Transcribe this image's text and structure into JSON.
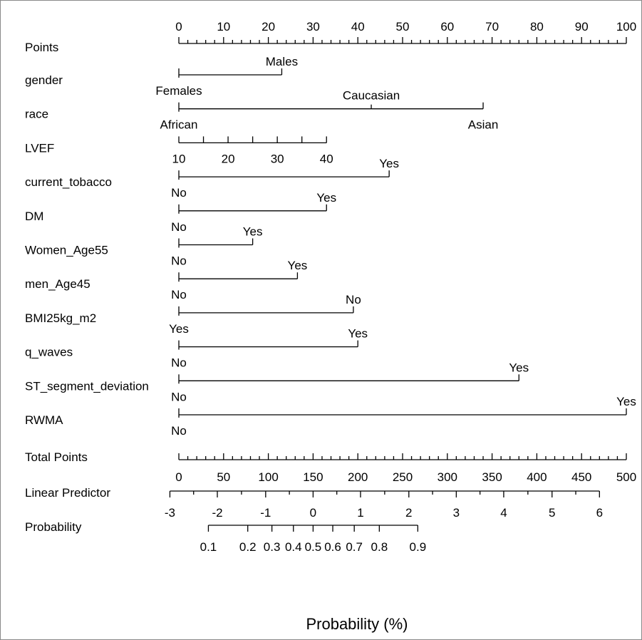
{
  "chart_data": {
    "type": "nomogram",
    "xlabel": "Probability (%)",
    "points_scale": {
      "label": "Points",
      "min": 0,
      "max": 100,
      "major_step": 10,
      "minor_step": 2
    },
    "variables": [
      {
        "name": "gender",
        "levels": [
          {
            "label": "Females",
            "points": 0
          },
          {
            "label": "Males",
            "points": 23
          }
        ]
      },
      {
        "name": "race",
        "levels": [
          {
            "label": "African",
            "points": 0
          },
          {
            "label": "Caucasian",
            "points": 43
          },
          {
            "label": "Asian",
            "points": 68
          }
        ]
      },
      {
        "name": "LVEF",
        "levels": [
          {
            "label": "10",
            "points": 0
          },
          {
            "label": "20",
            "points": 11
          },
          {
            "label": "30",
            "points": 22
          },
          {
            "label": "40",
            "points": 33
          }
        ]
      },
      {
        "name": "current_tobacco",
        "levels": [
          {
            "label": "No",
            "points": 0
          },
          {
            "label": "Yes",
            "points": 47
          }
        ]
      },
      {
        "name": "DM",
        "levels": [
          {
            "label": "No",
            "points": 0
          },
          {
            "label": "Yes",
            "points": 33
          }
        ]
      },
      {
        "name": "Women_Age55",
        "levels": [
          {
            "label": "No",
            "points": 0
          },
          {
            "label": "Yes",
            "points": 16.5
          }
        ]
      },
      {
        "name": "men_Age45",
        "levels": [
          {
            "label": "No",
            "points": 0
          },
          {
            "label": "Yes",
            "points": 26.5
          }
        ]
      },
      {
        "name": "BMI25kg_m2",
        "levels": [
          {
            "label": "Yes",
            "points": 0
          },
          {
            "label": "No",
            "points": 39
          }
        ]
      },
      {
        "name": "q_waves",
        "levels": [
          {
            "label": "No",
            "points": 0
          },
          {
            "label": "Yes",
            "points": 40
          }
        ]
      },
      {
        "name": "ST_segment_deviation",
        "levels": [
          {
            "label": "No",
            "points": 0
          },
          {
            "label": "Yes",
            "points": 76
          }
        ]
      },
      {
        "name": "RWMA",
        "levels": [
          {
            "label": "No",
            "points": 0
          },
          {
            "label": "Yes",
            "points": 100
          }
        ]
      }
    ],
    "total_points_scale": {
      "label": "Total Points",
      "min": 0,
      "max": 500,
      "major_step": 50,
      "minor_step": 10
    },
    "linear_predictor": {
      "label": "Linear Predictor",
      "ticks": [
        {
          "label": "-3",
          "value": -3,
          "total_points": -10
        },
        {
          "label": "-2",
          "value": -2,
          "total_points": 43
        },
        {
          "label": "-1",
          "value": -1,
          "total_points": 97
        },
        {
          "label": "0",
          "value": 0,
          "total_points": 150
        },
        {
          "label": "1",
          "value": 1,
          "total_points": 203
        },
        {
          "label": "2",
          "value": 2,
          "total_points": 257
        },
        {
          "label": "3",
          "value": 3,
          "total_points": 310
        },
        {
          "label": "4",
          "value": 4,
          "total_points": 363
        },
        {
          "label": "5",
          "value": 5,
          "total_points": 417
        },
        {
          "label": "6",
          "value": 6,
          "total_points": 470
        }
      ]
    },
    "probability": {
      "label": "Probability",
      "ticks": [
        {
          "label": "0.1",
          "value": 0.1,
          "total_points": 33
        },
        {
          "label": "0.2",
          "value": 0.2,
          "total_points": 77
        },
        {
          "label": "0.3",
          "value": 0.3,
          "total_points": 104
        },
        {
          "label": "0.4",
          "value": 0.4,
          "total_points": 128
        },
        {
          "label": "0.5",
          "value": 0.5,
          "total_points": 150
        },
        {
          "label": "0.6",
          "value": 0.6,
          "total_points": 172
        },
        {
          "label": "0.7",
          "value": 0.7,
          "total_points": 196
        },
        {
          "label": "0.8",
          "value": 0.8,
          "total_points": 224
        },
        {
          "label": "0.9",
          "value": 0.9,
          "total_points": 267
        }
      ]
    }
  }
}
